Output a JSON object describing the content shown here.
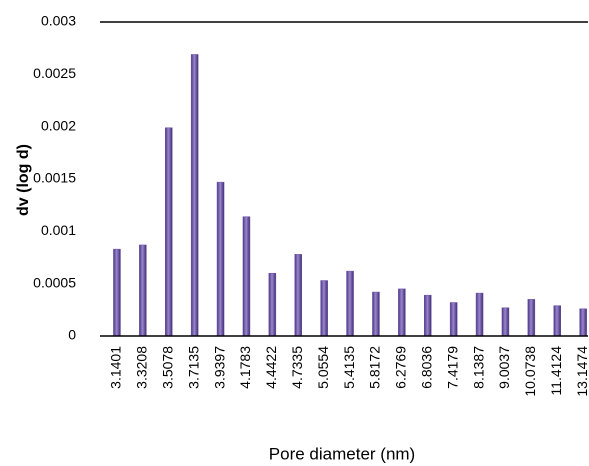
{
  "chart_data": {
    "type": "bar",
    "x_label": "Pore diameter (nm)",
    "y_label": "dv (log d)",
    "categories": [
      "3.1401",
      "3.3208",
      "3.5078",
      "3.7135",
      "3.9397",
      "4.1783",
      "4.4422",
      "4.7335",
      "5.0554",
      "5.4135",
      "5.8172",
      "6.2769",
      "6.8036",
      "7.4179",
      "8.1387",
      "9.0037",
      "10.0738",
      "11.4124",
      "13.1474"
    ],
    "values": [
      0.00083,
      0.00087,
      0.00199,
      0.00269,
      0.00147,
      0.00114,
      0.0006,
      0.00078,
      0.00053,
      0.00062,
      0.00042,
      0.00045,
      0.00039,
      0.00032,
      0.00041,
      0.00027,
      0.00035,
      0.00029,
      0.00026
    ],
    "color": "#6b52a3",
    "ylim": [
      0,
      0.003
    ],
    "yticks": [
      0,
      0.0005,
      0.001,
      0.0015,
      0.002,
      0.0025,
      0.003
    ],
    "grid": false
  }
}
